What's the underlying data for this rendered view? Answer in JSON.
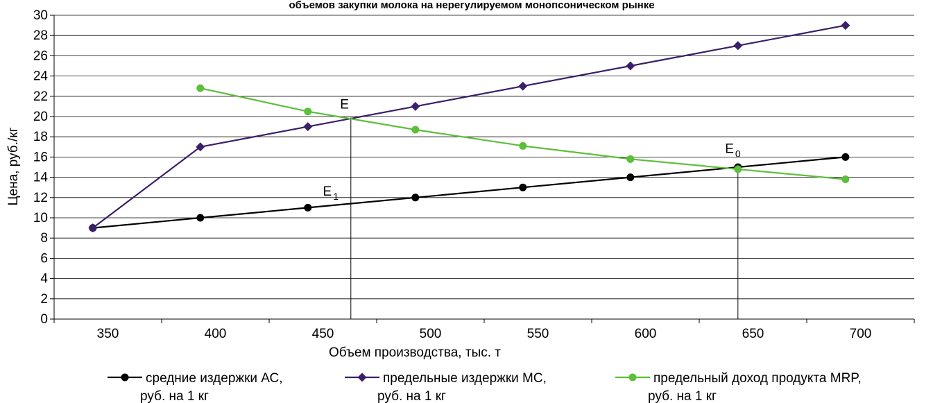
{
  "chart_data": {
    "type": "line",
    "title": "объемов закупки молока на нерегулируемом монопсоническом рынке",
    "xlabel": "Объем производства, тыс. т",
    "ylabel": "Цена, руб./кг",
    "xlim": [
      325,
      725
    ],
    "ylim": [
      0,
      30
    ],
    "xticks": [
      350,
      400,
      450,
      500,
      550,
      600,
      650,
      700
    ],
    "yticks": [
      0,
      2,
      4,
      6,
      8,
      10,
      12,
      14,
      16,
      18,
      20,
      22,
      24,
      26,
      28,
      30
    ],
    "grid": true,
    "legend_position": "bottom",
    "series": [
      {
        "name": "средние издержки АС, руб. на 1 кг",
        "legend_line1": "средние издержки АС,",
        "legend_line2": "руб. на 1 кг",
        "color": "#000000",
        "marker": "circle",
        "x": [
          343,
          393,
          443,
          493,
          543,
          593,
          643,
          693
        ],
        "values": [
          9,
          10,
          11,
          12,
          13,
          14,
          15,
          16
        ]
      },
      {
        "name": "предельные издержки МС, руб. на 1 кг",
        "legend_line1": "предельные издержки МС,",
        "legend_line2": "руб. на 1 кг",
        "color": "#3b1f6b",
        "marker": "diamond",
        "x": [
          343,
          393,
          443,
          493,
          543,
          593,
          643,
          693
        ],
        "values": [
          9,
          17,
          19,
          21,
          23,
          25,
          27,
          29
        ]
      },
      {
        "name": "предельный доход продукта MRP, руб. на 1 кг",
        "legend_line1": "предельный доход продукта MRP,",
        "legend_line2": "руб. на 1 кг",
        "color": "#5cbf3a",
        "marker": "circle",
        "x": [
          393,
          443,
          493,
          543,
          593,
          643,
          693
        ],
        "values": [
          22.8,
          20.5,
          18.7,
          17.1,
          15.8,
          14.8,
          13.8
        ]
      }
    ],
    "annotations": [
      {
        "label": "E",
        "sub": "",
        "x": 458,
        "y": 20.8,
        "drop_line_x": 463,
        "drop_line_from": 19.9
      },
      {
        "label": "E",
        "sub": "1",
        "x": 450,
        "y": 12.2
      },
      {
        "label": "E",
        "sub": "0",
        "x": 637,
        "y": 16.4,
        "drop_line_x": 643,
        "drop_line_from": 14.8
      }
    ]
  }
}
